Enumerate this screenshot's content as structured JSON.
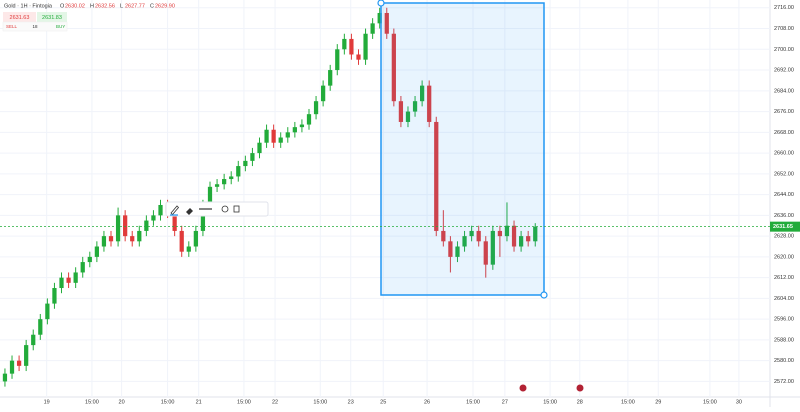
{
  "header": {
    "symbol": "Gold · 1H · Fintogia",
    "ohlc": [
      {
        "key": "O",
        "value": "2630.02"
      },
      {
        "key": "H",
        "value": "2632.56"
      },
      {
        "key": "L",
        "value": "2627.77"
      },
      {
        "key": "C",
        "value": "2629.90"
      }
    ]
  },
  "trade_panel": {
    "sell_price": "2631.63",
    "buy_price": "2631.83",
    "sell": "SELL",
    "quantity": "18",
    "buy": "BUY"
  },
  "chart_data": {
    "type": "candlestick",
    "up_color": "#22ab3a",
    "down_color": "#e03a3a",
    "open": [
      2572,
      2575,
      2580,
      2578,
      2586,
      2590,
      2596,
      2602,
      2608,
      2612,
      2610,
      2614,
      2618,
      2620,
      2624,
      2628,
      2626,
      2636,
      2628,
      2626,
      2630,
      2634,
      2636,
      2640,
      2637,
      2630,
      2622,
      2624,
      2630,
      2640,
      2647,
      2648,
      2650,
      2651,
      2655,
      2657,
      2660,
      2664,
      2669,
      2664,
      2666,
      2668,
      2670,
      2671,
      2675,
      2680,
      2686,
      2692,
      2700,
      2704,
      2698,
      2696,
      2706,
      2710,
      2714,
      2706,
      2680,
      2672,
      2676,
      2680,
      2686,
      2672,
      2630,
      2626,
      2620,
      2624,
      2628,
      2630,
      2626,
      2617,
      2630,
      2628,
      2632,
      2624,
      2628,
      2626
    ],
    "high": [
      2577,
      2582,
      2582,
      2588,
      2592,
      2598,
      2604,
      2610,
      2614,
      2614,
      2616,
      2620,
      2622,
      2626,
      2630,
      2630,
      2639,
      2638,
      2630,
      2632,
      2636,
      2638,
      2642,
      2642,
      2639,
      2632,
      2626,
      2632,
      2642,
      2649,
      2650,
      2652,
      2653,
      2657,
      2659,
      2662,
      2666,
      2671,
      2671,
      2668,
      2670,
      2672,
      2673,
      2677,
      2682,
      2688,
      2694,
      2702,
      2706,
      2706,
      2700,
      2708,
      2712,
      2716,
      2716,
      2708,
      2682,
      2678,
      2682,
      2688,
      2688,
      2674,
      2638,
      2628,
      2626,
      2630,
      2632,
      2632,
      2628,
      2632,
      2632,
      2641,
      2634,
      2630,
      2630,
      2633
    ],
    "low": [
      2570,
      2573,
      2576,
      2576,
      2584,
      2588,
      2594,
      2600,
      2606,
      2608,
      2608,
      2612,
      2616,
      2618,
      2622,
      2624,
      2624,
      2626,
      2624,
      2624,
      2628,
      2632,
      2634,
      2635,
      2628,
      2620,
      2620,
      2622,
      2628,
      2638,
      2645,
      2646,
      2648,
      2649,
      2653,
      2655,
      2658,
      2662,
      2662,
      2662,
      2664,
      2666,
      2668,
      2669,
      2673,
      2678,
      2684,
      2690,
      2698,
      2696,
      2694,
      2694,
      2704,
      2708,
      2704,
      2678,
      2670,
      2670,
      2674,
      2678,
      2670,
      2628,
      2624,
      2614,
      2618,
      2622,
      2626,
      2624,
      2612,
      2615,
      2620,
      2626,
      2622,
      2622,
      2624,
      2624
    ],
    "close": [
      2575,
      2580,
      2578,
      2586,
      2590,
      2596,
      2602,
      2608,
      2612,
      2610,
      2614,
      2618,
      2620,
      2624,
      2628,
      2626,
      2636,
      2628,
      2626,
      2630,
      2634,
      2636,
      2640,
      2637,
      2630,
      2622,
      2624,
      2630,
      2640,
      2647,
      2648,
      2650,
      2651,
      2655,
      2657,
      2660,
      2664,
      2669,
      2664,
      2666,
      2668,
      2670,
      2671,
      2675,
      2680,
      2686,
      2692,
      2700,
      2704,
      2698,
      2696,
      2706,
      2710,
      2714,
      2706,
      2680,
      2672,
      2676,
      2680,
      2686,
      2672,
      2630,
      2626,
      2620,
      2624,
      2628,
      2630,
      2626,
      2617,
      2630,
      2628,
      2632,
      2624,
      2628,
      2626,
      2631.65
    ],
    "last_price": 2631.65,
    "xlim": [
      -0.7,
      108.2
    ],
    "xticks": [
      {
        "value": 5.9,
        "label": "19"
      },
      {
        "value": 12.3,
        "label": "15:00"
      },
      {
        "value": 16.5,
        "label": "20"
      },
      {
        "value": 23,
        "label": "15:00"
      },
      {
        "value": 27.4,
        "label": "21"
      },
      {
        "value": 33.8,
        "label": "15:00"
      },
      {
        "value": 38.2,
        "label": "22"
      },
      {
        "value": 44.6,
        "label": "15:00"
      },
      {
        "value": 48.9,
        "label": "23"
      },
      {
        "value": 53.5,
        "label": "25"
      },
      {
        "value": 59.7,
        "label": "26"
      },
      {
        "value": 66.2,
        "label": "15:00"
      },
      {
        "value": 70.7,
        "label": "27"
      },
      {
        "value": 77.1,
        "label": "15:00"
      },
      {
        "value": 81.3,
        "label": "28"
      },
      {
        "value": 88.1,
        "label": "15:00"
      },
      {
        "value": 92.4,
        "label": "29"
      },
      {
        "value": 99.7,
        "label": "15:00"
      },
      {
        "value": 103.8,
        "label": "30"
      }
    ],
    "ylim": [
      2566,
      2719
    ],
    "yticks": [
      {
        "value": 2716,
        "label": "2716.00"
      },
      {
        "value": 2708,
        "label": "2708.00"
      },
      {
        "value": 2700,
        "label": "2700.00"
      },
      {
        "value": 2692,
        "label": "2692.00"
      },
      {
        "value": 2684,
        "label": "2684.00"
      },
      {
        "value": 2676,
        "label": "2676.00"
      },
      {
        "value": 2668,
        "label": "2668.00"
      },
      {
        "value": 2660,
        "label": "2660.00"
      },
      {
        "value": 2652,
        "label": "2652.00"
      },
      {
        "value": 2644,
        "label": "2644.00"
      },
      {
        "value": 2636,
        "label": "2636.00"
      },
      {
        "value": 2628,
        "label": "2628.00"
      },
      {
        "value": 2620,
        "label": "2620.00"
      },
      {
        "value": 2612,
        "label": "2612.00"
      },
      {
        "value": 2604,
        "label": "2604.00"
      },
      {
        "value": 2596,
        "label": "2596.00"
      },
      {
        "value": 2588,
        "label": "2588.00"
      },
      {
        "value": 2580,
        "label": "2580.00"
      },
      {
        "value": 2572,
        "label": "2572.00"
      }
    ],
    "grid": true
  }
}
